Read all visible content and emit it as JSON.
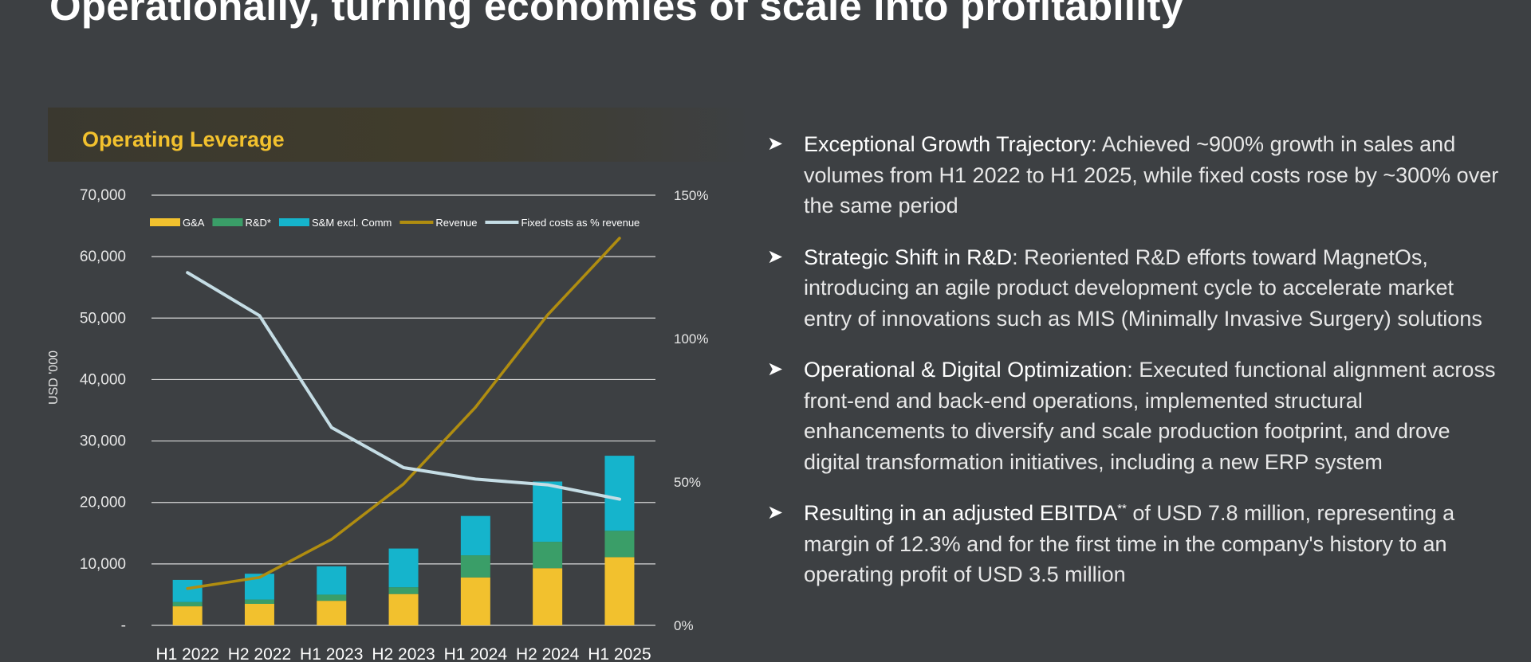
{
  "slide": {
    "title": "Operationally, turning economies of scale into profitability"
  },
  "chart_data": {
    "type": "bar",
    "stacked": true,
    "title": "Operating Leverage",
    "ylabel": "USD '000",
    "categories": [
      "H1 2022",
      "H2 2022",
      "H1 2023",
      "H2 2023",
      "H1 2024",
      "H2 2024",
      "H1 2025"
    ],
    "ylim": [
      0,
      70000
    ],
    "yticks": [
      0,
      10000,
      20000,
      30000,
      40000,
      50000,
      60000,
      70000
    ],
    "ytick_labels": [
      "-",
      "10,000",
      "20,000",
      "30,000",
      "40,000",
      "50,000",
      "60,000",
      "70,000"
    ],
    "y2lim": [
      0,
      150
    ],
    "y2ticks": [
      0,
      50,
      100,
      150
    ],
    "y2tick_labels": [
      "0%",
      "50%",
      "100%",
      "150%"
    ],
    "grid": true,
    "legend_position": "top",
    "series": [
      {
        "name": "G&A",
        "kind": "bar",
        "color": "#f2c12e",
        "values": [
          3100,
          3500,
          4000,
          5100,
          7800,
          9300,
          11100
        ]
      },
      {
        "name": "R&D*",
        "kind": "bar",
        "color": "#3a9e68",
        "values": [
          700,
          700,
          1000,
          1100,
          3600,
          4300,
          4300
        ]
      },
      {
        "name": "S&M excl. Comm",
        "kind": "bar",
        "color": "#15b4cc",
        "values": [
          3600,
          4200,
          4600,
          6300,
          6400,
          9800,
          12200
        ]
      },
      {
        "name": "Revenue",
        "kind": "line",
        "axis": "left",
        "color": "#b08d10",
        "values": [
          6000,
          7800,
          14000,
          23000,
          35500,
          50500,
          63000
        ]
      },
      {
        "name": "Fixed costs as % revenue",
        "kind": "line",
        "axis": "right",
        "color": "#c5dde5",
        "values": [
          123,
          108,
          69,
          55,
          51,
          49,
          44
        ]
      }
    ]
  },
  "bullets": [
    {
      "lead": "Exceptional Growth Trajectory",
      "text": ": Achieved ~900% growth in sales and volumes from H1 2022 to H1 2025, while fixed costs rose by ~300% over the same period"
    },
    {
      "lead": "Strategic Shift in R&D",
      "text": ": Reoriented R&D efforts toward MagnetOs, introducing an agile product development cycle to accelerate market entry of innovations such as MIS (Minimally Invasive Surgery) solutions"
    },
    {
      "lead": "Operational & Digital Optimization",
      "text": ": Executed functional alignment across front-end and back-end operations, implemented structural enhancements to diversify and scale production footprint, and drove digital transformation initiatives, including a new ERP system"
    },
    {
      "lead": "Resulting in an adjusted EBITDA",
      "sup": "**",
      "text": " of USD 7.8 million, representing a margin of 12.3% and for the first time in the company's history to an operating profit of USD 3.5 million"
    }
  ],
  "icons": {
    "bullet": "arrowhead-bullet-icon"
  }
}
